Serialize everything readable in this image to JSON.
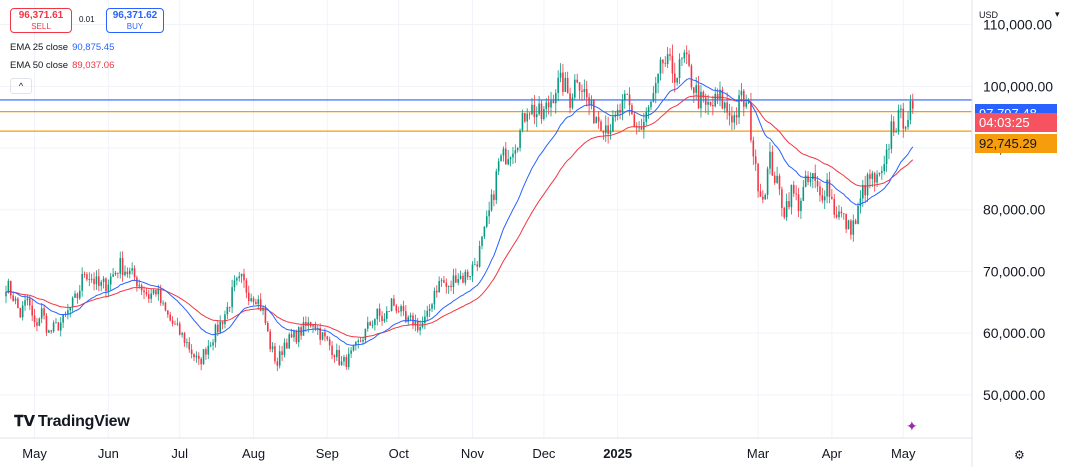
{
  "header": {
    "sell_price": "96,371.61",
    "sell_label": "SELL",
    "spread": "0.01",
    "buy_price": "96,371.62",
    "buy_label": "BUY",
    "indicators": [
      {
        "label": "EMA 25 close",
        "value": "90,875.45",
        "color": "#2962ff"
      },
      {
        "label": "EMA 50 close",
        "value": "89,037.06",
        "color": "#f23645"
      }
    ],
    "collapse_icon": "^"
  },
  "price_axis": {
    "currency": "USD",
    "current_price_label": "97,797.48",
    "countdown": "04:03:25",
    "line_label": "92,745.29"
  },
  "branding": {
    "name": "TradingView"
  },
  "colors": {
    "up": "#089981",
    "down": "#f23645",
    "ema25": "#2962ff",
    "ema50": "#f23645",
    "hline_blue": "#2962ff",
    "hline_orange": "#f59d0c",
    "countdown_bg": "#f7525f",
    "line_label_bg": "#f59d0c"
  },
  "chart_data": {
    "type": "candlestick",
    "ylim": [
      43000,
      114000
    ],
    "y_ticks": [
      {
        "value": 50000,
        "label": "50,000.00"
      },
      {
        "value": 60000,
        "label": "60,000.00"
      },
      {
        "value": 70000,
        "label": "70,000.00"
      },
      {
        "value": 80000,
        "label": "80,000.00"
      },
      {
        "value": 90000,
        "label": "90,000.00"
      },
      {
        "value": 100000,
        "label": "100,000.00"
      },
      {
        "value": 110000,
        "label": "110,000.00"
      }
    ],
    "x_ticks": [
      {
        "label": "May",
        "day": 12
      },
      {
        "label": "Jun",
        "day": 43
      },
      {
        "label": "Jul",
        "day": 73
      },
      {
        "label": "Aug",
        "day": 104
      },
      {
        "label": "Sep",
        "day": 135
      },
      {
        "label": "Oct",
        "day": 165
      },
      {
        "label": "Nov",
        "day": 196
      },
      {
        "label": "Dec",
        "day": 226
      },
      {
        "label": "2025",
        "day": 257,
        "bold": true
      },
      {
        "label": "Mar",
        "day": 316
      },
      {
        "label": "Apr",
        "day": 347
      },
      {
        "label": "May",
        "day": 377
      }
    ],
    "horizontal_lines": [
      {
        "value": 97797.48,
        "color": "#2962ff"
      },
      {
        "value": 95900,
        "color": "#f59d0c"
      },
      {
        "value": 92745.29,
        "color": "#f59d0c"
      }
    ],
    "close_anchors": [
      [
        0,
        68000
      ],
      [
        3,
        66000
      ],
      [
        6,
        63000
      ],
      [
        9,
        65500
      ],
      [
        12,
        61000
      ],
      [
        15,
        63500
      ],
      [
        18,
        60000
      ],
      [
        21,
        61000
      ],
      [
        24,
        62000
      ],
      [
        27,
        64000
      ],
      [
        30,
        66000
      ],
      [
        33,
        70000
      ],
      [
        36,
        69000
      ],
      [
        39,
        67500
      ],
      [
        42,
        68000
      ],
      [
        45,
        69500
      ],
      [
        48,
        71000
      ],
      [
        51,
        70000
      ],
      [
        54,
        69000
      ],
      [
        57,
        67500
      ],
      [
        60,
        66000
      ],
      [
        63,
        67000
      ],
      [
        66,
        64000
      ],
      [
        69,
        62000
      ],
      [
        72,
        60500
      ],
      [
        75,
        59000
      ],
      [
        78,
        57000
      ],
      [
        81,
        55000
      ],
      [
        84,
        57500
      ],
      [
        87,
        59500
      ],
      [
        90,
        61500
      ],
      [
        93,
        64000
      ],
      [
        96,
        67500
      ],
      [
        99,
        68500
      ],
      [
        102,
        66500
      ],
      [
        105,
        66000
      ],
      [
        108,
        63500
      ],
      [
        111,
        58000
      ],
      [
        114,
        55000
      ],
      [
        117,
        58500
      ],
      [
        120,
        59000
      ],
      [
        123,
        60000
      ],
      [
        126,
        61000
      ],
      [
        129,
        62000
      ],
      [
        132,
        60000
      ],
      [
        135,
        58500
      ],
      [
        138,
        57000
      ],
      [
        141,
        55000
      ],
      [
        144,
        55800
      ],
      [
        147,
        57500
      ],
      [
        150,
        59500
      ],
      [
        153,
        61500
      ],
      [
        156,
        63000
      ],
      [
        159,
        62000
      ],
      [
        162,
        65000
      ],
      [
        165,
        64000
      ],
      [
        168,
        61500
      ],
      [
        171,
        62000
      ],
      [
        174,
        61000
      ],
      [
        177,
        62500
      ],
      [
        180,
        67000
      ],
      [
        183,
        68500
      ],
      [
        186,
        67000
      ],
      [
        189,
        69500
      ],
      [
        192,
        69000
      ],
      [
        195,
        70000
      ],
      [
        198,
        72000
      ],
      [
        201,
        76000
      ],
      [
        204,
        81000
      ],
      [
        207,
        87500
      ],
      [
        210,
        89000
      ],
      [
        213,
        90500
      ],
      [
        216,
        92500
      ],
      [
        219,
        97000
      ],
      [
        222,
        96000
      ],
      [
        225,
        95000
      ],
      [
        228,
        97000
      ],
      [
        231,
        100000
      ],
      [
        234,
        100500
      ],
      [
        237,
        98000
      ],
      [
        240,
        102000
      ],
      [
        243,
        99000
      ],
      [
        246,
        96000
      ],
      [
        249,
        95000
      ],
      [
        252,
        94000
      ],
      [
        255,
        93500
      ],
      [
        258,
        96000
      ],
      [
        261,
        97500
      ],
      [
        264,
        94000
      ],
      [
        267,
        93000
      ],
      [
        270,
        96000
      ],
      [
        273,
        99000
      ],
      [
        276,
        104000
      ],
      [
        279,
        103000
      ],
      [
        282,
        102000
      ],
      [
        285,
        104500
      ],
      [
        288,
        101000
      ],
      [
        291,
        98000
      ],
      [
        294,
        96500
      ],
      [
        297,
        97000
      ],
      [
        300,
        98000
      ],
      [
        303,
        96000
      ],
      [
        306,
        95000
      ],
      [
        309,
        98000
      ],
      [
        312,
        96000
      ],
      [
        315,
        86000
      ],
      [
        318,
        82000
      ],
      [
        321,
        88000
      ],
      [
        324,
        84000
      ],
      [
        327,
        80000
      ],
      [
        330,
        83000
      ],
      [
        333,
        81000
      ],
      [
        336,
        84000
      ],
      [
        339,
        85000
      ],
      [
        342,
        82000
      ],
      [
        345,
        84500
      ],
      [
        348,
        80000
      ],
      [
        351,
        79000
      ],
      [
        354,
        77000
      ],
      [
        357,
        78000
      ],
      [
        360,
        83000
      ],
      [
        363,
        85000
      ],
      [
        366,
        84500
      ],
      [
        369,
        86000
      ],
      [
        372,
        93500
      ],
      [
        375,
        94500
      ],
      [
        378,
        95000
      ],
      [
        381,
        96400
      ]
    ],
    "ema_label_values": {
      "ema25": 90875.45,
      "ema50": 89037.06
    }
  }
}
